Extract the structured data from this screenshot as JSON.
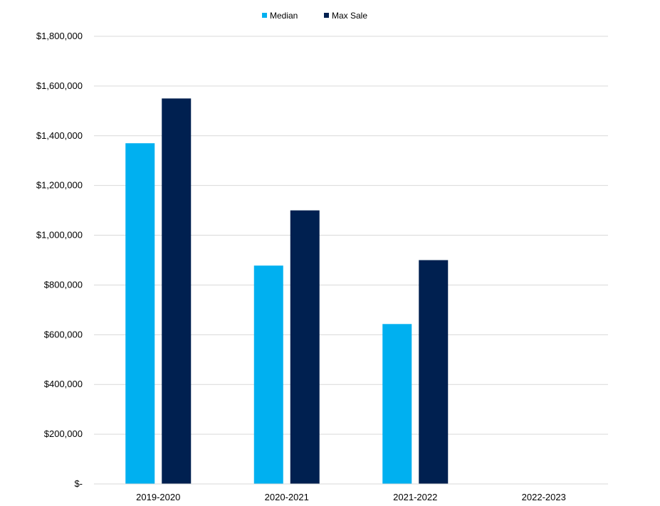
{
  "chart_data": {
    "type": "bar",
    "title": "",
    "xlabel": "",
    "ylabel": "",
    "categories": [
      "2019-2020",
      "2020-2021",
      "2021-2022",
      "2022-2023"
    ],
    "series": [
      {
        "name": "Median",
        "color": "#00B0F0",
        "values": [
          1370000,
          878000,
          643000,
          null
        ]
      },
      {
        "name": "Max Sale",
        "color": "#002050",
        "values": [
          1550000,
          1100000,
          900000,
          null
        ]
      }
    ],
    "ylim": [
      0,
      1800000
    ],
    "y_ticks": [
      {
        "value": 0,
        "label": "$-"
      },
      {
        "value": 200000,
        "label": "$200,000"
      },
      {
        "value": 400000,
        "label": "$400,000"
      },
      {
        "value": 600000,
        "label": "$600,000"
      },
      {
        "value": 800000,
        "label": "$800,000"
      },
      {
        "value": 1000000,
        "label": "$1,000,000"
      },
      {
        "value": 1200000,
        "label": "$1,200,000"
      },
      {
        "value": 1400000,
        "label": "$1,400,000"
      },
      {
        "value": 1600000,
        "label": "$1,600,000"
      },
      {
        "value": 1800000,
        "label": "$1,800,000"
      }
    ],
    "grid": true,
    "legend_position": "top-center",
    "gridline_color": "#D9D9D9"
  }
}
